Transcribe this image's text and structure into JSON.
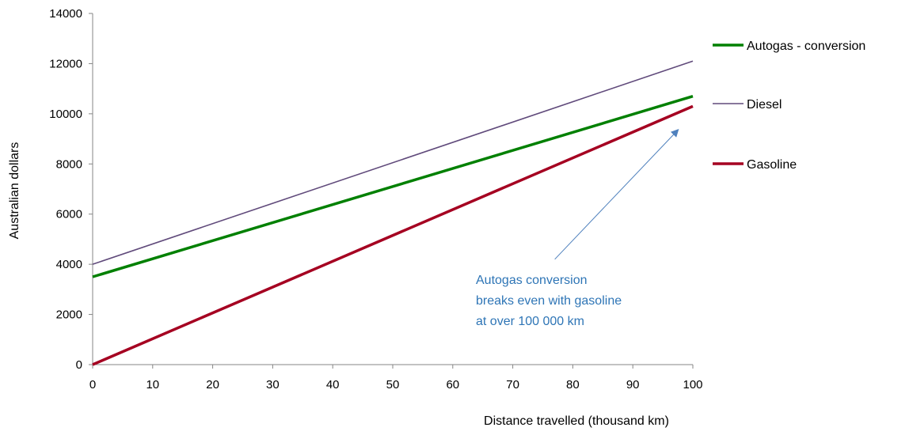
{
  "chart_data": {
    "type": "line",
    "xlabel": "Distance travelled (thousand km)",
    "ylabel": "Australian dollars",
    "xlim": [
      0,
      100
    ],
    "ylim": [
      0,
      14000
    ],
    "x_ticks": [
      0,
      10,
      20,
      30,
      40,
      50,
      60,
      70,
      80,
      90,
      100
    ],
    "y_ticks": [
      0,
      2000,
      4000,
      6000,
      8000,
      10000,
      12000,
      14000
    ],
    "x_tick_labels": [
      "0",
      "10",
      "20",
      "30",
      "40",
      "50",
      "60",
      "70",
      "80",
      "90",
      "100"
    ],
    "y_tick_labels": [
      "0",
      "2000",
      "4000",
      "6000",
      "8000",
      "10000",
      "12000",
      "14000"
    ],
    "grid": false,
    "legend_position": "right",
    "series": [
      {
        "name": "Autogas - conversion",
        "color": "#008000",
        "x": [
          0,
          100
        ],
        "values": [
          3500,
          10700
        ]
      },
      {
        "name": "Diesel",
        "color": "#604A7B",
        "x": [
          0,
          100
        ],
        "values": [
          4000,
          12100
        ]
      },
      {
        "name": "Gasoline",
        "color": "#A50021",
        "x": [
          0,
          100
        ],
        "values": [
          0,
          10300
        ]
      }
    ],
    "annotation": {
      "lines": [
        "Autogas conversion",
        "breaks even with gasoline",
        "at over 100 000 km"
      ],
      "color": "#2E75B6",
      "arrow_from": [
        77,
        4200
      ],
      "arrow_to": [
        97.5,
        9350
      ]
    }
  }
}
